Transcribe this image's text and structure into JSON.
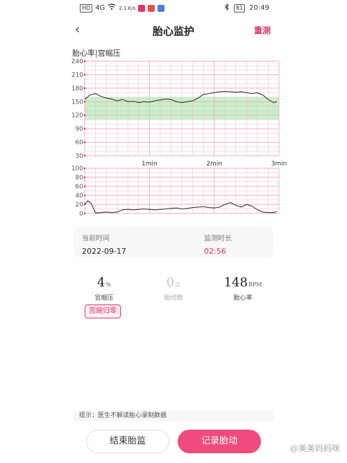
{
  "status_bar": {
    "network_badge": "HD",
    "signal": "4G",
    "speed": "2.1 K/s",
    "battery": "81",
    "time": "20:49"
  },
  "header": {
    "title": "胎心监护",
    "retest_label": "重测",
    "back_icon": "chevron-left-icon"
  },
  "chart": {
    "label": "胎心率|宫缩压",
    "fhr_axis_ticks": [
      "240",
      "210",
      "180",
      "150",
      "120",
      "90",
      "60",
      "30"
    ],
    "time_ticks": [
      "1min",
      "2min",
      "3min"
    ],
    "uc_axis_ticks": [
      "100",
      "80",
      "60",
      "40",
      "20",
      "0"
    ]
  },
  "chart_data": [
    {
      "type": "line",
      "ylim": [
        30,
        240
      ],
      "x": [
        0,
        5,
        10,
        15,
        20,
        25,
        30,
        35,
        40,
        45,
        50,
        55,
        60,
        65,
        70,
        75,
        80,
        85,
        90,
        95,
        100,
        105,
        110,
        115,
        120,
        125,
        130,
        135,
        140,
        145,
        150,
        155,
        160,
        165,
        170,
        175,
        178
      ],
      "values": [
        155,
        165,
        168,
        162,
        158,
        156,
        152,
        155,
        150,
        151,
        148,
        150,
        149,
        152,
        154,
        156,
        155,
        150,
        148,
        150,
        152,
        158,
        166,
        168,
        170,
        172,
        173,
        172,
        171,
        172,
        170,
        168,
        170,
        165,
        155,
        148,
        150
      ],
      "band": [
        110,
        160
      ]
    },
    {
      "type": "line",
      "ylim": [
        0,
        100
      ],
      "x": [
        0,
        3,
        6,
        10,
        15,
        20,
        25,
        30,
        35,
        40,
        45,
        50,
        55,
        60,
        65,
        70,
        75,
        80,
        85,
        90,
        95,
        100,
        105,
        110,
        115,
        120,
        125,
        130,
        135,
        140,
        145,
        150,
        155,
        160,
        165,
        170,
        175,
        178
      ],
      "values": [
        20,
        28,
        22,
        1,
        2,
        3,
        2,
        3,
        8,
        9,
        8,
        9,
        10,
        9,
        8,
        9,
        10,
        11,
        12,
        10,
        11,
        13,
        14,
        15,
        13,
        12,
        14,
        20,
        24,
        18,
        14,
        20,
        16,
        8,
        3,
        2,
        2,
        4
      ]
    }
  ],
  "info": {
    "current_time_label": "当前时间",
    "current_time_value": "2022-09-17",
    "duration_label": "监测时长",
    "duration_value": "02:56"
  },
  "stats": {
    "uc_value": "4",
    "uc_unit": "%",
    "uc_label": "宫缩压",
    "movement_value": "0",
    "movement_unit": "次",
    "movement_label": "胎动数",
    "fhr_value": "148",
    "fhr_unit": "BPM",
    "fhr_label": "胎心率"
  },
  "zero_button": "宫缩归零",
  "tip": "提示：医生不解读胎心录制数据",
  "buttons": {
    "end_label": "结束胎监",
    "record_label": "记录胎动"
  },
  "watermark": "@美美妈妈咪",
  "colors": {
    "accent": "#ef4b7c",
    "band": "#c9f0c9",
    "grid": "#f0a8c0"
  }
}
